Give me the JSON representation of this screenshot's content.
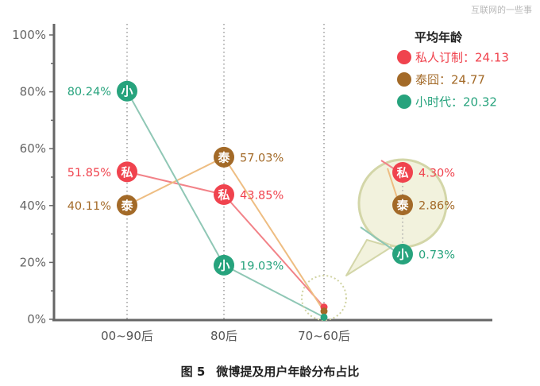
{
  "watermark": "互联网的一些事",
  "caption": {
    "figure": "图 5",
    "title": "微博提及用户年龄分布占比"
  },
  "chart_data": {
    "type": "line",
    "title": "",
    "xlabel": "",
    "ylabel": "",
    "categories": [
      "00~90后",
      "80后",
      "70~60后"
    ],
    "yticks": [
      "0%",
      "20%",
      "40%",
      "60%",
      "80%",
      "100%"
    ],
    "ylim": [
      0,
      100
    ],
    "grid": false,
    "legend_title": "平均年龄",
    "legend_position": "top-right",
    "series": [
      {
        "name": "私人订制",
        "badge": "私",
        "avg_age_label": "24.13",
        "color": "#f0434e",
        "line_color": "#f28288",
        "values": [
          51.85,
          43.85,
          4.3
        ],
        "labels": [
          "51.85%",
          "43.85%",
          "4.30%"
        ]
      },
      {
        "name": "泰囧",
        "badge": "泰",
        "avg_age_label": "24.77",
        "color": "#a36a28",
        "line_color": "#eebd82",
        "values": [
          40.11,
          57.03,
          2.86
        ],
        "labels": [
          "40.11%",
          "57.03%",
          "2.86%"
        ]
      },
      {
        "name": "小时代",
        "badge": "小",
        "avg_age_label": "20.32",
        "color": "#27a37d",
        "line_color": "#8fc7b5",
        "values": [
          80.24,
          19.03,
          0.73
        ],
        "labels": [
          "80.24%",
          "19.03%",
          "0.73%"
        ]
      }
    ],
    "legend_separator": "："
  }
}
